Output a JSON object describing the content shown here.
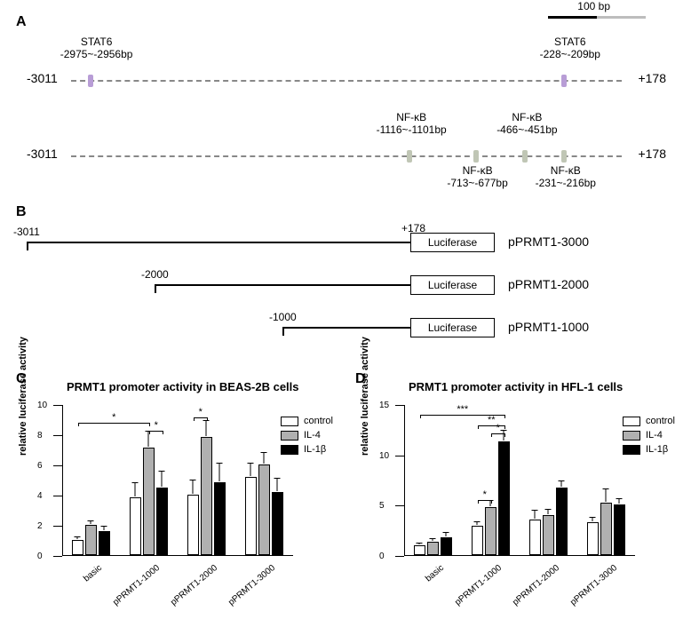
{
  "scale_bar": {
    "label": "100 bp",
    "black_color": "#000000",
    "grey_color": "#bdbdbd"
  },
  "panelA": {
    "label": "A",
    "left_coord": "-3011",
    "right_coord": "+178",
    "stat6_color": "#b89dd6",
    "nfkb_color": "#c0c6b5",
    "stat6_sites": [
      {
        "name": "STAT6",
        "range": "-2975~-2956bp",
        "pos_pct": 3
      },
      {
        "name": "STAT6",
        "range": "-228~-209bp",
        "pos_pct": 89
      }
    ],
    "nfkb_sites": [
      {
        "name": "NF-κB",
        "range": "-1116~-1101bp",
        "pos_pct": 61,
        "label_pos": "top"
      },
      {
        "name": "NF-κB",
        "range": "-713~-677bp",
        "pos_pct": 73,
        "label_pos": "bottom"
      },
      {
        "name": "NF-κB",
        "range": "-466~-451bp",
        "pos_pct": 82,
        "label_pos": "top"
      },
      {
        "name": "NF-κB",
        "range": "-231~-216bp",
        "pos_pct": 89,
        "label_pos": "bottom"
      }
    ]
  },
  "panelB": {
    "label": "B",
    "luciferase_label": "Luciferase",
    "constructs": [
      {
        "name": "pPRMT1-3000",
        "start": "-3011",
        "end": "+178",
        "start_pct": 0,
        "end_pct": 72
      },
      {
        "name": "pPRMT1-2000",
        "start": "-2000",
        "start_pct": 24,
        "end_pct": 72
      },
      {
        "name": "pPRMT1-1000",
        "start": "-1000",
        "start_pct": 48,
        "end_pct": 72
      }
    ]
  },
  "charts": {
    "colors": {
      "control": "#ffffff",
      "il4": "#b0b0b0",
      "il1b": "#000000",
      "border": "#000000"
    },
    "legend": [
      "control",
      "IL-4",
      "IL-1β"
    ],
    "C": {
      "label": "C",
      "title": "PRMT1 promoter activity in BEAS-2B cells",
      "ylabel": "relative luciferase activity",
      "ymax": 10,
      "ytick_step": 2,
      "categories": [
        "basic",
        "pPRMT1-1000",
        "pPRMT1-2000",
        "pPRMT1-3000"
      ],
      "series": [
        {
          "name": "control",
          "values": [
            1.0,
            3.8,
            4.0,
            5.2
          ],
          "err": [
            0.1,
            0.9,
            0.9,
            0.8
          ]
        },
        {
          "name": "IL-4",
          "values": [
            2.0,
            7.1,
            7.8,
            6.0
          ],
          "err": [
            0.2,
            1.0,
            1.0,
            0.7
          ]
        },
        {
          "name": "IL-1β",
          "values": [
            1.6,
            4.5,
            4.8,
            4.2
          ],
          "err": [
            0.2,
            1.0,
            1.2,
            0.8
          ]
        }
      ],
      "sig": [
        {
          "from_group": 0,
          "from_bar": 0,
          "to_group": 1,
          "to_bar": 1,
          "y": 8.8,
          "stars": "*"
        },
        {
          "from_group": 1,
          "from_bar": 1,
          "to_group": 1,
          "to_bar": 2,
          "y": 8.3,
          "stars": "*"
        },
        {
          "from_group": 2,
          "from_bar": 0,
          "to_group": 2,
          "to_bar": 1,
          "y": 9.2,
          "stars": "*"
        }
      ]
    },
    "D": {
      "label": "D",
      "title": "PRMT1 promoter activity in HFL-1 cells",
      "ylabel": "relative luciferase activity",
      "ymax": 15,
      "ytick_step": 5,
      "categories": [
        "basic",
        "pPRMT1-1000",
        "pPRMT1-2000",
        "pPRMT1-3000"
      ],
      "series": [
        {
          "name": "control",
          "values": [
            1.0,
            2.9,
            3.5,
            3.3
          ],
          "err": [
            0.1,
            0.3,
            0.8,
            0.3
          ]
        },
        {
          "name": "IL-4",
          "values": [
            1.3,
            4.8,
            4.0,
            5.2
          ],
          "err": [
            0.2,
            0.5,
            0.4,
            1.2
          ]
        },
        {
          "name": "IL-1β",
          "values": [
            1.8,
            11.3,
            6.7,
            5.0
          ],
          "err": [
            0.3,
            1.0,
            0.5,
            0.5
          ]
        }
      ],
      "sig": [
        {
          "from_group": 0,
          "from_bar": 0,
          "to_group": 1,
          "to_bar": 2,
          "y": 14.0,
          "stars": "***"
        },
        {
          "from_group": 1,
          "from_bar": 0,
          "to_group": 1,
          "to_bar": 2,
          "y": 13.0,
          "stars": "**"
        },
        {
          "from_group": 1,
          "from_bar": 1,
          "to_group": 1,
          "to_bar": 2,
          "y": 12.2,
          "stars": "*"
        },
        {
          "from_group": 1,
          "from_bar": 0,
          "to_group": 1,
          "to_bar": 1,
          "y": 5.6,
          "stars": "*"
        }
      ]
    }
  }
}
